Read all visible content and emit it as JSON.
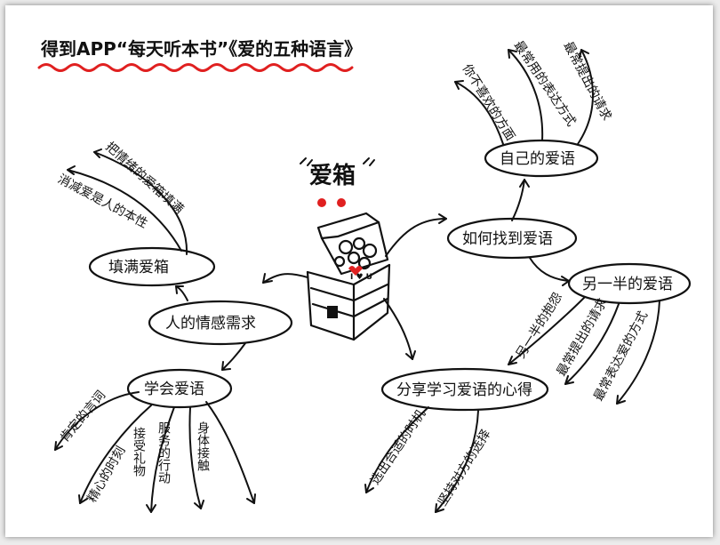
{
  "title": "得到APP“每天听本书”《爱的五种语言》",
  "center": {
    "label": "爱箱",
    "heart_text": "I ♥ U"
  },
  "nodes": {
    "emotional_needs": "人的情感需求",
    "fill_love_tank": "填满爱箱",
    "learn_love_language": "学会爱语",
    "find_love_language": "如何找到爱语",
    "own_love_language": "自己的爱语",
    "partner_love_language": "另一半的爱语",
    "share_experience": "分享学习爱语的心得"
  },
  "leaves": {
    "fill_love_tank": [
      "消减爱是人的本性",
      "把情绪的爱箱填满"
    ],
    "learn_love_language": [
      "肯定的言词",
      "精心的时刻",
      "接受礼物",
      "服务的行动",
      "身体接触"
    ],
    "own_love_language": [
      "你不喜欢的方面",
      "最常用的表达方式",
      "最常提出的请求"
    ],
    "partner_love_language": [
      "另一半的抱怨",
      "最常提出的请求",
      "最常表达爱的方式"
    ],
    "share_experience": [
      "选出合适的时机",
      "坚持对方的选择"
    ]
  },
  "colors": {
    "ink": "#111111",
    "accent_red": "#e02020",
    "paper": "#ffffff"
  }
}
